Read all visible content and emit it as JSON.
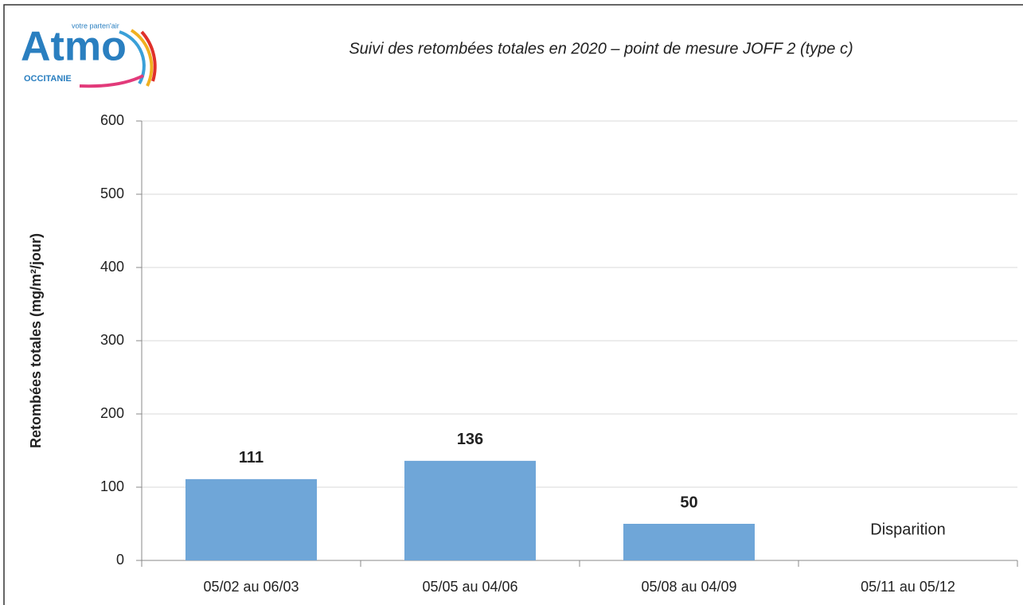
{
  "logo": {
    "brand": "Atmo",
    "tagline": "votre parten'air",
    "region": "OCCITANIE"
  },
  "chart_data": {
    "type": "bar",
    "title": "Suivi des retombées totales en 2020 – point de mesure JOFF 2 (type c)",
    "y_label": "Retombées totales (mg/m²/jour)",
    "categories": [
      "05/02 au 06/03",
      "05/05 au 04/06",
      "05/08 au 04/09",
      "05/11 au 05/12"
    ],
    "values": [
      111,
      136,
      50,
      null
    ],
    "color": "#6fa6d8",
    "ylim": [
      0,
      600
    ],
    "yticks": [
      0,
      100,
      200,
      300,
      400,
      500,
      600
    ],
    "grid": true,
    "annotations": [
      {
        "text": "Disparition",
        "x": "05/11 au 05/12"
      }
    ]
  }
}
